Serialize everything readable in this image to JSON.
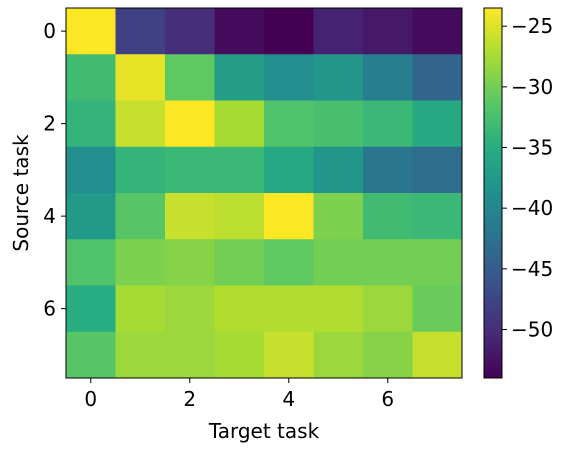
{
  "chart_data": {
    "type": "heatmap",
    "xlabel": "Target task",
    "ylabel": "Source task",
    "x_categories": [
      0,
      1,
      2,
      3,
      4,
      5,
      6,
      7
    ],
    "y_categories": [
      0,
      1,
      2,
      3,
      4,
      5,
      6,
      7
    ],
    "x_ticks": [
      0,
      2,
      4,
      6
    ],
    "y_ticks": [
      0,
      2,
      4,
      6
    ],
    "values": [
      [
        -23.5,
        -48.0,
        -50.0,
        -53.0,
        -54.0,
        -51.0,
        -52.0,
        -53.0
      ],
      [
        -33.0,
        -24.5,
        -31.0,
        -37.0,
        -39.0,
        -38.0,
        -41.0,
        -44.0
      ],
      [
        -34.0,
        -26.0,
        -23.5,
        -27.5,
        -32.0,
        -32.5,
        -33.5,
        -35.5
      ],
      [
        -39.0,
        -34.0,
        -33.5,
        -33.5,
        -35.5,
        -38.0,
        -42.0,
        -43.0
      ],
      [
        -37.5,
        -31.5,
        -26.0,
        -26.5,
        -23.5,
        -29.5,
        -33.0,
        -33.5
      ],
      [
        -32.0,
        -29.5,
        -29.0,
        -30.0,
        -31.0,
        -30.0,
        -30.0,
        -30.0
      ],
      [
        -35.0,
        -27.5,
        -28.0,
        -27.0,
        -27.0,
        -27.0,
        -28.0,
        -30.5
      ],
      [
        -31.5,
        -28.0,
        -28.0,
        -27.5,
        -26.0,
        -28.0,
        -29.0,
        -26.0
      ]
    ],
    "colormap": "viridis",
    "vmin": -54,
    "vmax": -23.5,
    "colorbar_ticks": [
      -25,
      -30,
      -35,
      -40,
      -45,
      -50
    ],
    "colorbar_tick_labels": [
      "−25",
      "−30",
      "−35",
      "−40",
      "−45",
      "−50"
    ]
  }
}
